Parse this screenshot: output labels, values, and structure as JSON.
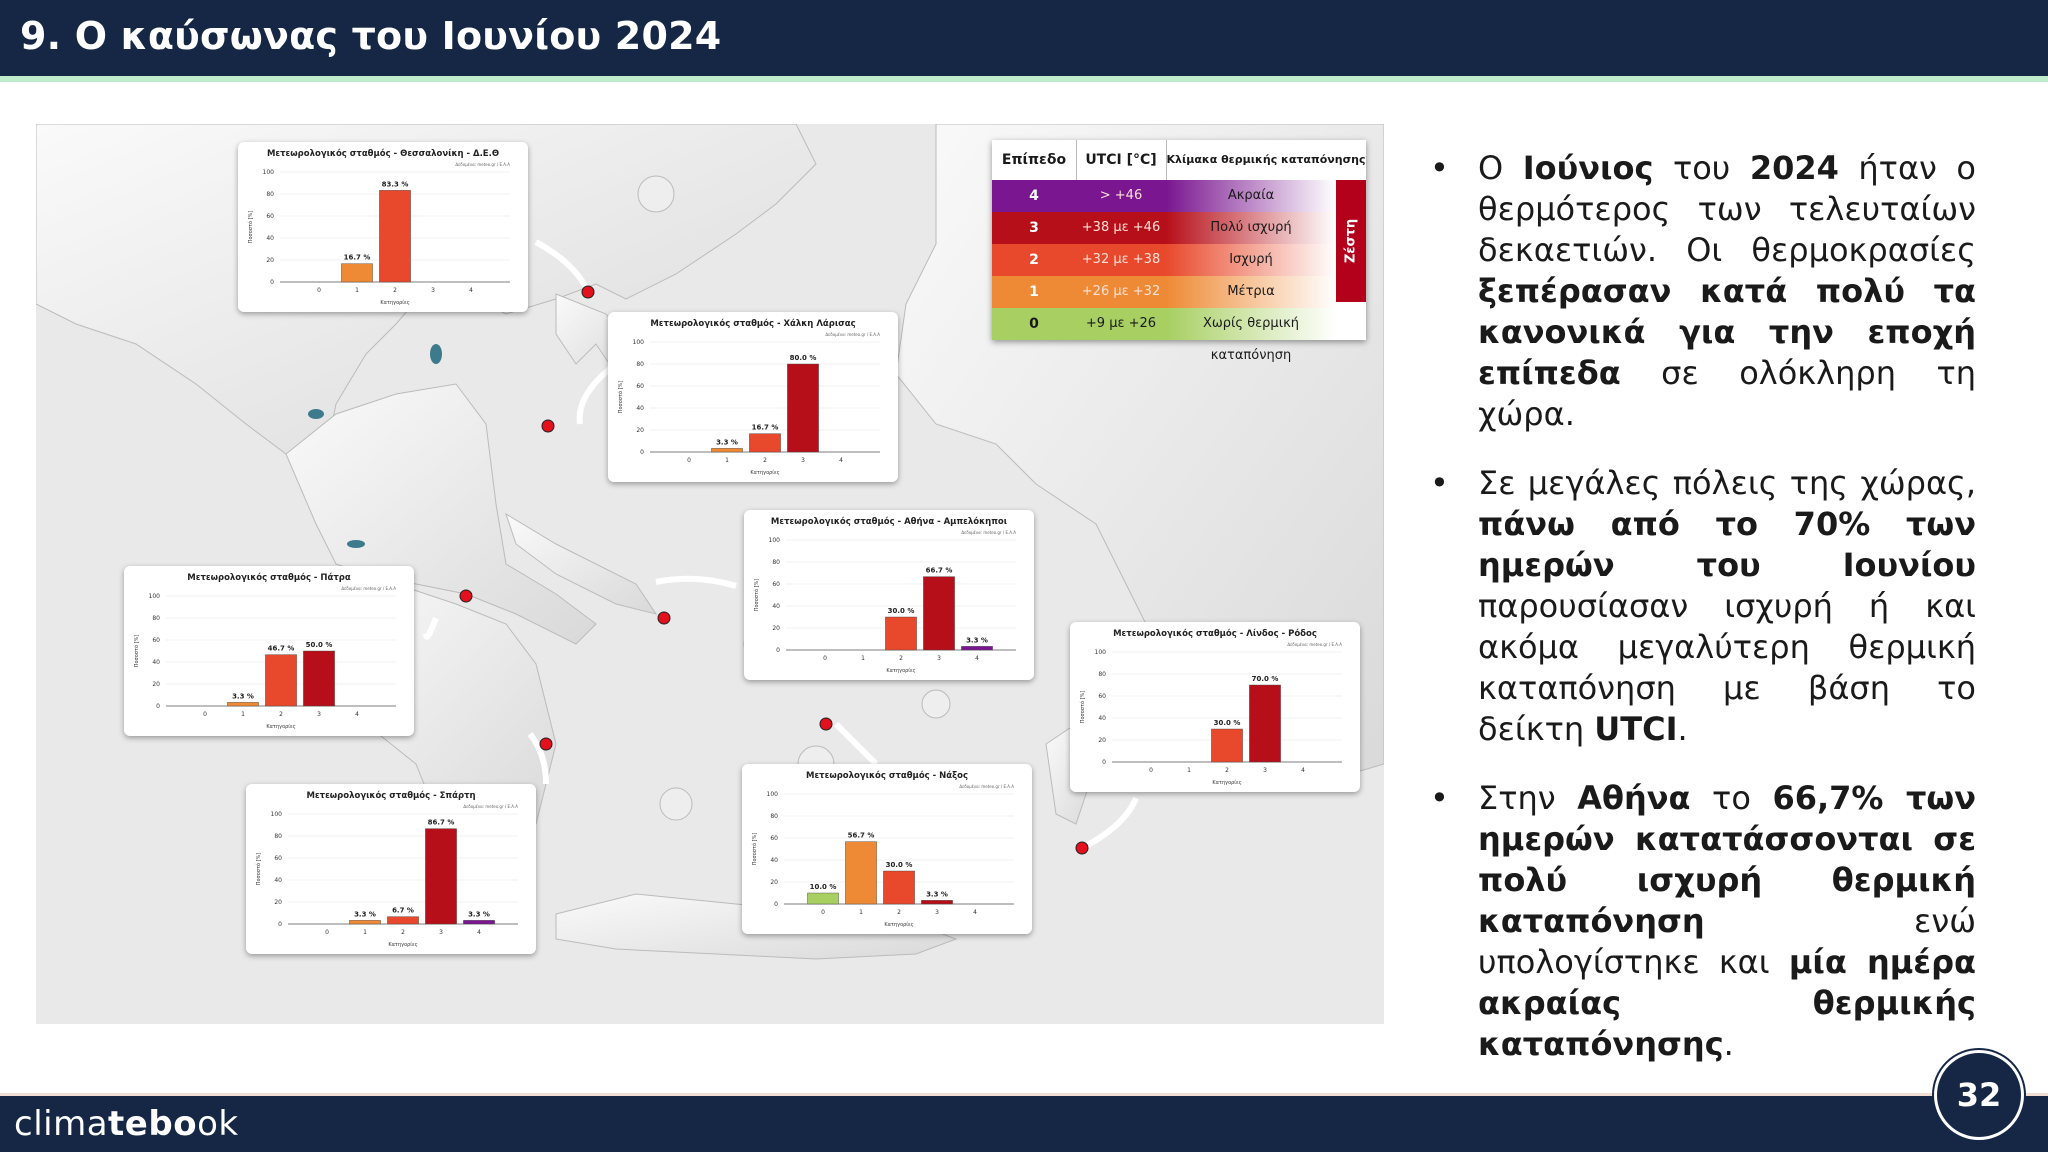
{
  "header": {
    "title": "9. Ο καύσωνας του Ιουνίου 2024"
  },
  "footer": {
    "logo_part1": "clima",
    "logo_part2": "tebo",
    "logo_part3": "ok",
    "page_number": "32"
  },
  "legend": {
    "col_level": "Επίπεδο",
    "col_utci": "UTCI [°C]",
    "col_scale": "Κλίμακα θερμικής καταπόνησης",
    "side_label": "Ζέστη",
    "rows": [
      {
        "level": "4",
        "range": "> +46",
        "label": "Ακραία",
        "color": "#7a1690"
      },
      {
        "level": "3",
        "range": "+38 με +46",
        "label": "Πολύ ισχυρή",
        "color": "#b70f19"
      },
      {
        "level": "2",
        "range": "+32 με +38",
        "label": "Ισχυρή",
        "color": "#e8492c"
      },
      {
        "level": "1",
        "range": "+26 με +32",
        "label": "Μέτρια",
        "color": "#ee8a35"
      },
      {
        "level": "0",
        "range": "+9 με +26",
        "label": "Χωρίς θερμική καταπόνηση",
        "color": "#a7cf62"
      }
    ]
  },
  "chart_data": [
    {
      "type": "bar",
      "title": "Μετεωρολογικός σταθμός - Θεσσαλονίκη - Δ.Ε.Θ",
      "source": "Δεδομένα: meteo.gr / Ε.Α.Α",
      "categories": [
        "0",
        "1",
        "2",
        "3",
        "4"
      ],
      "values": [
        0,
        16.7,
        83.3,
        0,
        0
      ],
      "labels": [
        "",
        "16.7 %",
        "83.3 %",
        "",
        ""
      ],
      "ylabel": "Ποσοστό [%]",
      "xlabel": "Κατηγορίες",
      "ylim": [
        0,
        100
      ],
      "yticks": [
        "0",
        "20",
        "40",
        "60",
        "80",
        "100"
      ]
    },
    {
      "type": "bar",
      "title": "Μετεωρολογικός σταθμός - Χάλκη Λάρισας",
      "source": "Δεδομένα: meteo.gr / Ε.Α.Α",
      "categories": [
        "0",
        "1",
        "2",
        "3",
        "4"
      ],
      "values": [
        0,
        3.3,
        16.7,
        80.0,
        0
      ],
      "labels": [
        "",
        "3.3 %",
        "16.7 %",
        "80.0 %",
        ""
      ],
      "ylabel": "Ποσοστό [%]",
      "xlabel": "Κατηγορίες",
      "ylim": [
        0,
        100
      ],
      "yticks": [
        "0",
        "20",
        "40",
        "60",
        "80",
        "100"
      ]
    },
    {
      "type": "bar",
      "title": "Μετεωρολογικός σταθμός - Αθήνα - Αμπελόκηποι",
      "source": "Δεδομένα: meteo.gr / Ε.Α.Α",
      "categories": [
        "0",
        "1",
        "2",
        "3",
        "4"
      ],
      "values": [
        0,
        0,
        30.0,
        66.7,
        3.3
      ],
      "labels": [
        "",
        "",
        "30.0 %",
        "66.7 %",
        "3.3 %"
      ],
      "ylabel": "Ποσοστό [%]",
      "xlabel": "Κατηγορίες",
      "ylim": [
        0,
        100
      ],
      "yticks": [
        "0",
        "20",
        "40",
        "60",
        "80",
        "100"
      ]
    },
    {
      "type": "bar",
      "title": "Μετεωρολογικός σταθμός - Πάτρα",
      "source": "Δεδομένα: meteo.gr / Ε.Α.Α",
      "categories": [
        "0",
        "1",
        "2",
        "3",
        "4"
      ],
      "values": [
        0,
        3.3,
        46.7,
        50.0,
        0
      ],
      "labels": [
        "",
        "3.3 %",
        "46.7 %",
        "50.0 %",
        ""
      ],
      "ylabel": "Ποσοστό [%]",
      "xlabel": "Κατηγορίες",
      "ylim": [
        0,
        100
      ],
      "yticks": [
        "0",
        "20",
        "40",
        "60",
        "80",
        "100"
      ]
    },
    {
      "type": "bar",
      "title": "Μετεωρολογικός σταθμός - Λίνδος - Ρόδος",
      "source": "Δεδομένα: meteo.gr / Ε.Α.Α",
      "categories": [
        "0",
        "1",
        "2",
        "3",
        "4"
      ],
      "values": [
        0,
        0,
        30.0,
        70.0,
        0
      ],
      "labels": [
        "",
        "",
        "30.0 %",
        "70.0 %",
        ""
      ],
      "ylabel": "Ποσοστό [%]",
      "xlabel": "Κατηγορίες",
      "ylim": [
        0,
        100
      ],
      "yticks": [
        "0",
        "20",
        "40",
        "60",
        "80",
        "100"
      ]
    },
    {
      "type": "bar",
      "title": "Μετεωρολογικός σταθμός - Νάξος",
      "source": "Δεδομένα: meteo.gr / Ε.Α.Α",
      "categories": [
        "0",
        "1",
        "2",
        "3",
        "4"
      ],
      "values": [
        10.0,
        56.7,
        30.0,
        3.3,
        0
      ],
      "labels": [
        "10.0 %",
        "56.7 %",
        "30.0 %",
        "3.3 %",
        ""
      ],
      "ylabel": "Ποσοστό [%]",
      "xlabel": "Κατηγορίες",
      "ylim": [
        0,
        100
      ],
      "yticks": [
        "0",
        "20",
        "40",
        "60",
        "80",
        "100"
      ]
    },
    {
      "type": "bar",
      "title": "Μετεωρολογικός σταθμός - Σπάρτη",
      "source": "Δεδομένα: meteo.gr / Ε.Α.Α",
      "categories": [
        "0",
        "1",
        "2",
        "3",
        "4"
      ],
      "values": [
        0,
        3.3,
        6.7,
        86.7,
        3.3
      ],
      "labels": [
        "",
        "3.3 %",
        "6.7 %",
        "86.7 %",
        "3.3 %"
      ],
      "ylabel": "Ποσοστό [%]",
      "xlabel": "Κατηγορίες",
      "ylim": [
        0,
        100
      ],
      "yticks": [
        "0",
        "20",
        "40",
        "60",
        "80",
        "100"
      ]
    }
  ],
  "bullets": [
    {
      "p1": "Ο ",
      "b1": "Ιούνιος",
      "p2": " του ",
      "b2": "2024",
      "p3": " ήταν ο θερμότερος των τελευταίων δεκαετιών. Οι θερμοκρασίες ",
      "b3": "ξεπέρασαν κατά πολύ τα κανονικά για την εποχή επίπεδα",
      "p4": " σε ολόκληρη τη χώρα."
    },
    {
      "p1": "Σε μεγάλες πόλεις της χώρας, ",
      "b1": "πάνω από το 70% των ημερών του Ιουνίου",
      "p2": " παρουσίασαν ισχυρή ή και ακόμα μεγαλύτερη θερμική καταπόνηση με βάση το δείκτη ",
      "b2": "UTCI",
      "p3": "."
    },
    {
      "p1": "Στην ",
      "b1": "Αθήνα",
      "p2": " το ",
      "b2": "66,7% των ημερών κατατάσσονται σε πολύ ισχυρή θερμική καταπόνηση",
      "p3": " ενώ υπολογίστηκε και ",
      "b3": "μία ημέρα ακραίας θερμικής καταπόνησης",
      "p4": "."
    }
  ],
  "colors": {
    "navy": "#152745",
    "cat0": "#a7cf62",
    "cat1": "#ee8a35",
    "cat2": "#e8492c",
    "cat3": "#b70f19",
    "cat4": "#7a1690"
  }
}
